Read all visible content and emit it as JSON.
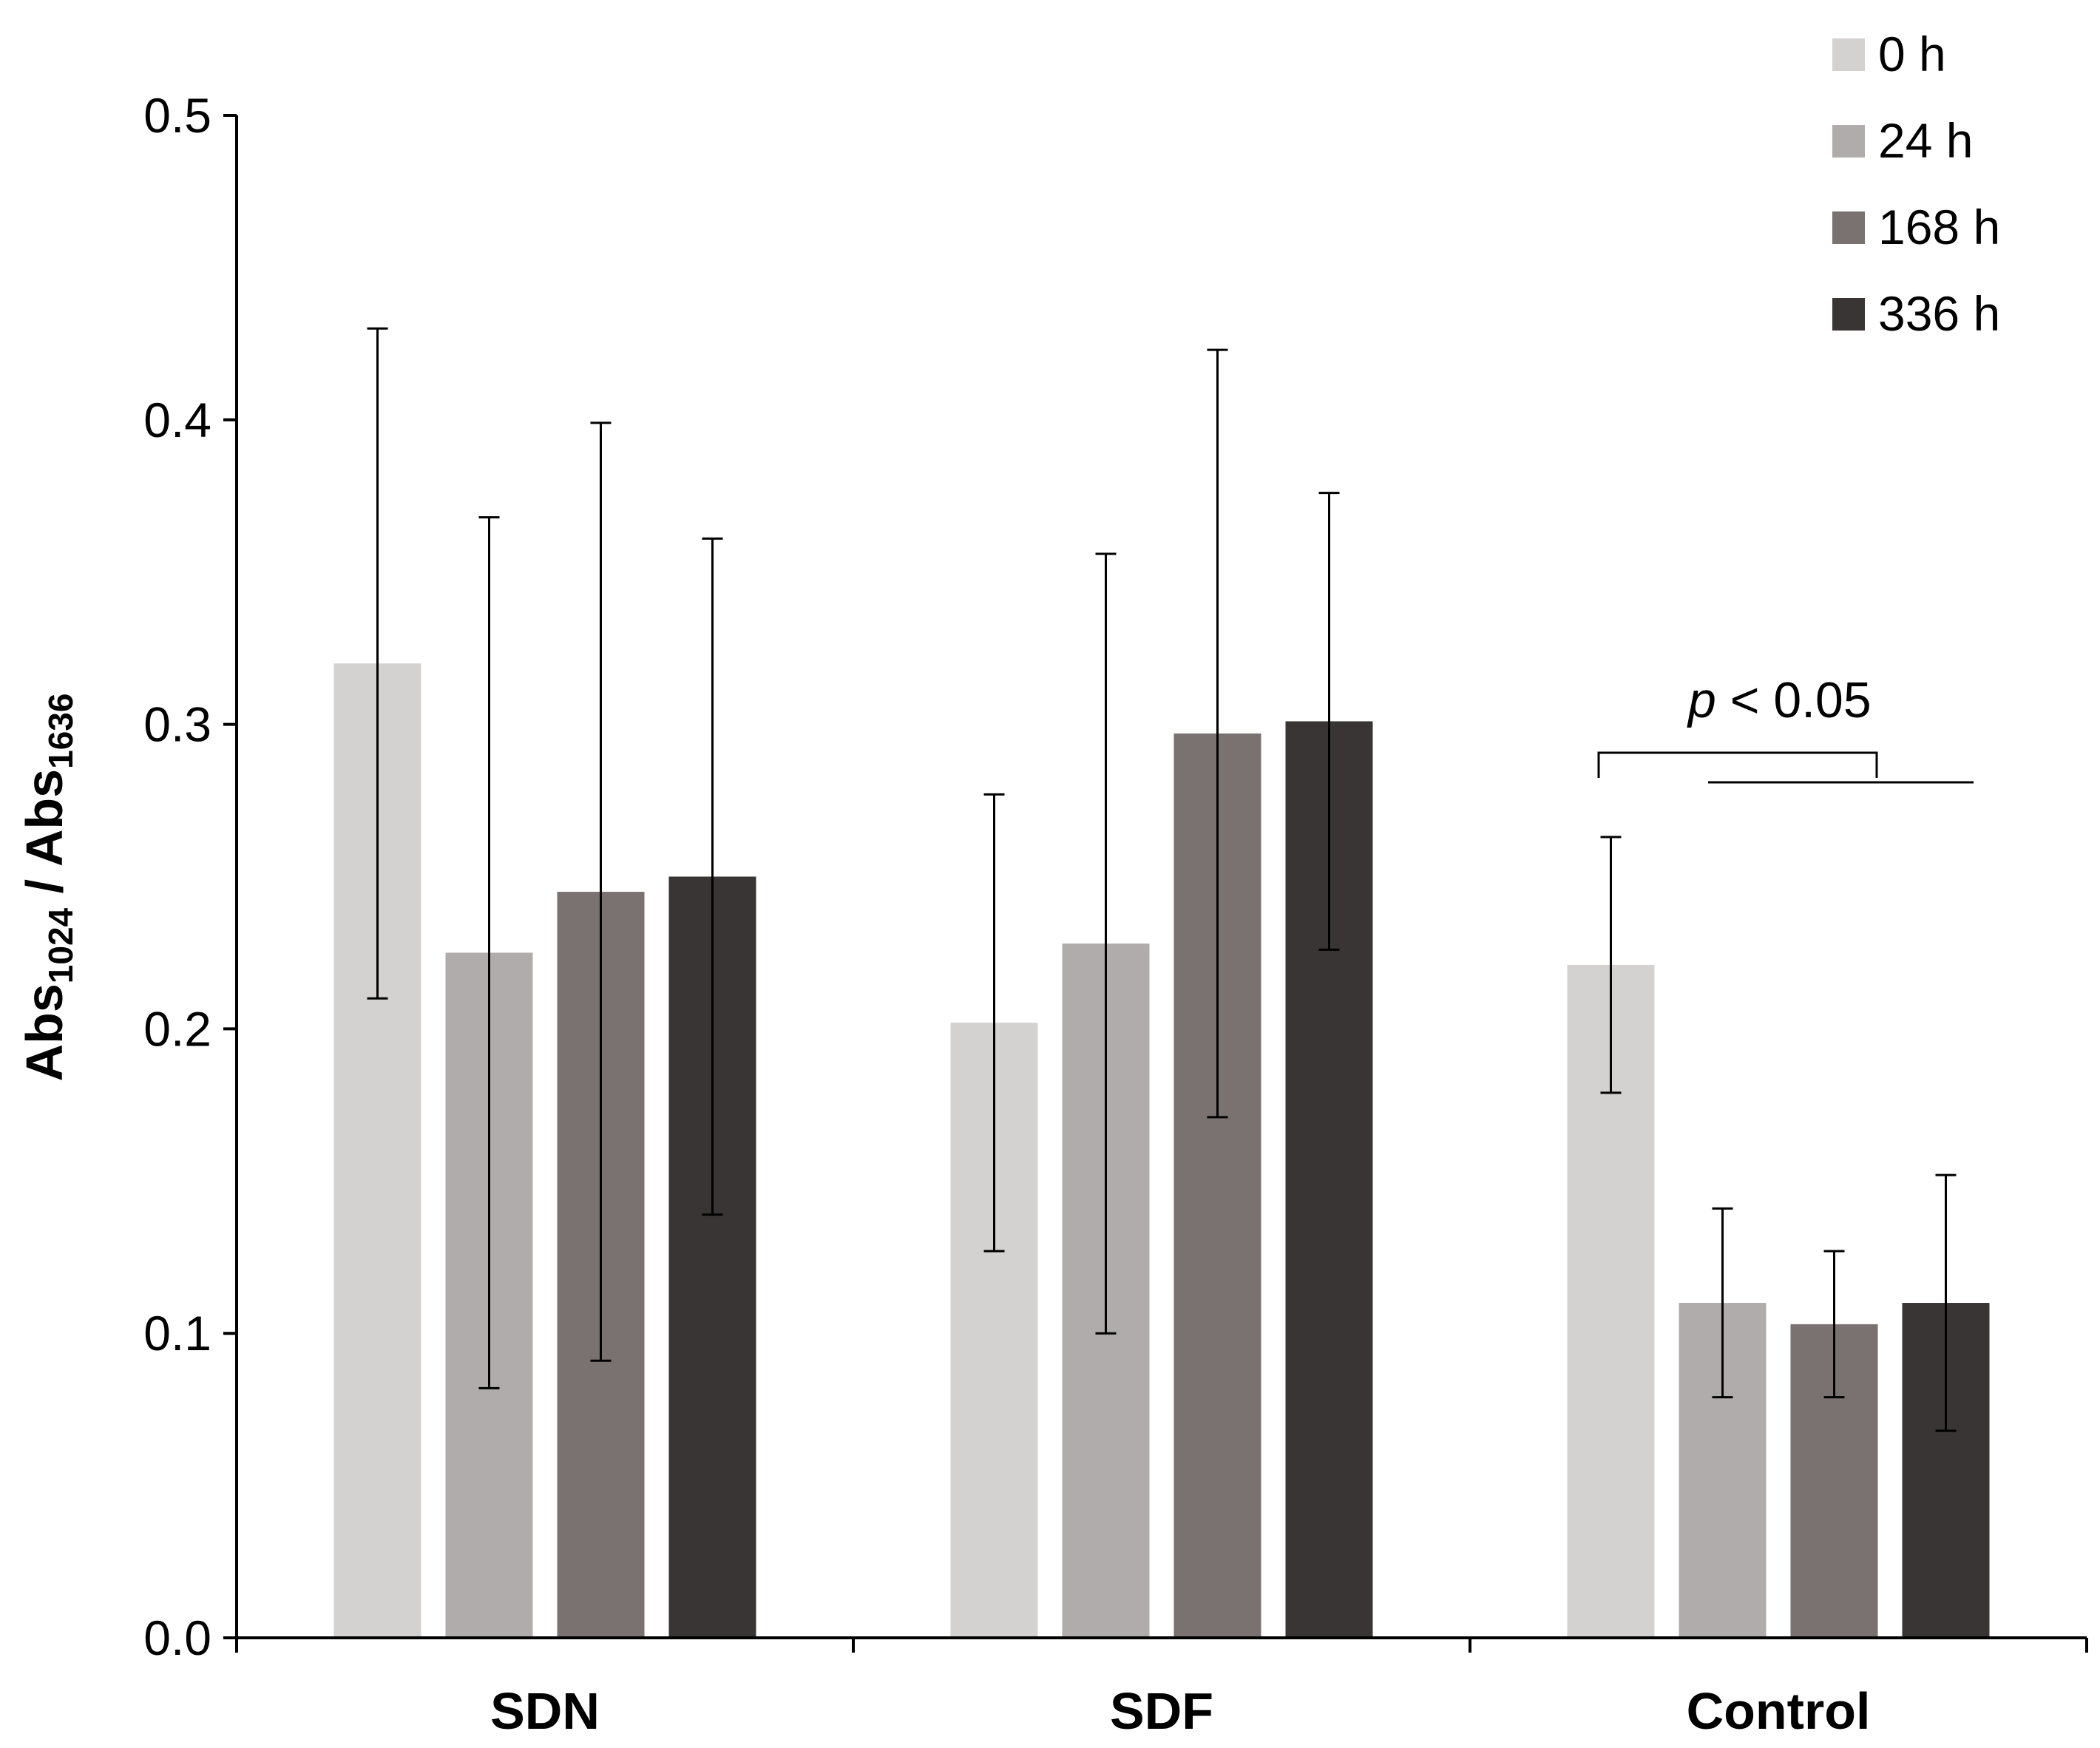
{
  "chart_data": {
    "type": "bar",
    "title": "",
    "xlabel": "",
    "ylabel": {
      "prefix1": "Abs",
      "sub1": "1024",
      "middle": " / Abs",
      "sub2": "1636"
    },
    "ylim": [
      0,
      0.5
    ],
    "yticks": [
      0.0,
      0.1,
      0.2,
      0.3,
      0.4,
      0.5
    ],
    "ytick_labels": [
      "0.0",
      "0.1",
      "0.2",
      "0.3",
      "0.4",
      "0.5"
    ],
    "categories": [
      "SDN",
      "SDF",
      "Control"
    ],
    "series": [
      {
        "name": "0 h",
        "color": "#d3d2d0",
        "values": [
          0.32,
          0.202,
          0.221
        ],
        "errors": [
          0.11,
          0.075,
          0.042
        ]
      },
      {
        "name": "24 h",
        "color": "#b0acab",
        "values": [
          0.225,
          0.228,
          0.11
        ],
        "errors": [
          0.143,
          0.128,
          0.031
        ]
      },
      {
        "name": "168 h",
        "color": "#7a7171",
        "values": [
          0.245,
          0.297,
          0.103
        ],
        "errors": [
          0.154,
          0.126,
          0.024
        ]
      },
      {
        "name": "336 h",
        "color": "#393534",
        "values": [
          0.25,
          0.301,
          0.11
        ],
        "errors": [
          0.111,
          0.075,
          0.042
        ]
      }
    ],
    "legend_position": "top-right",
    "annotation": {
      "p_symbol": "p",
      "p_text": " < 0.05"
    }
  }
}
